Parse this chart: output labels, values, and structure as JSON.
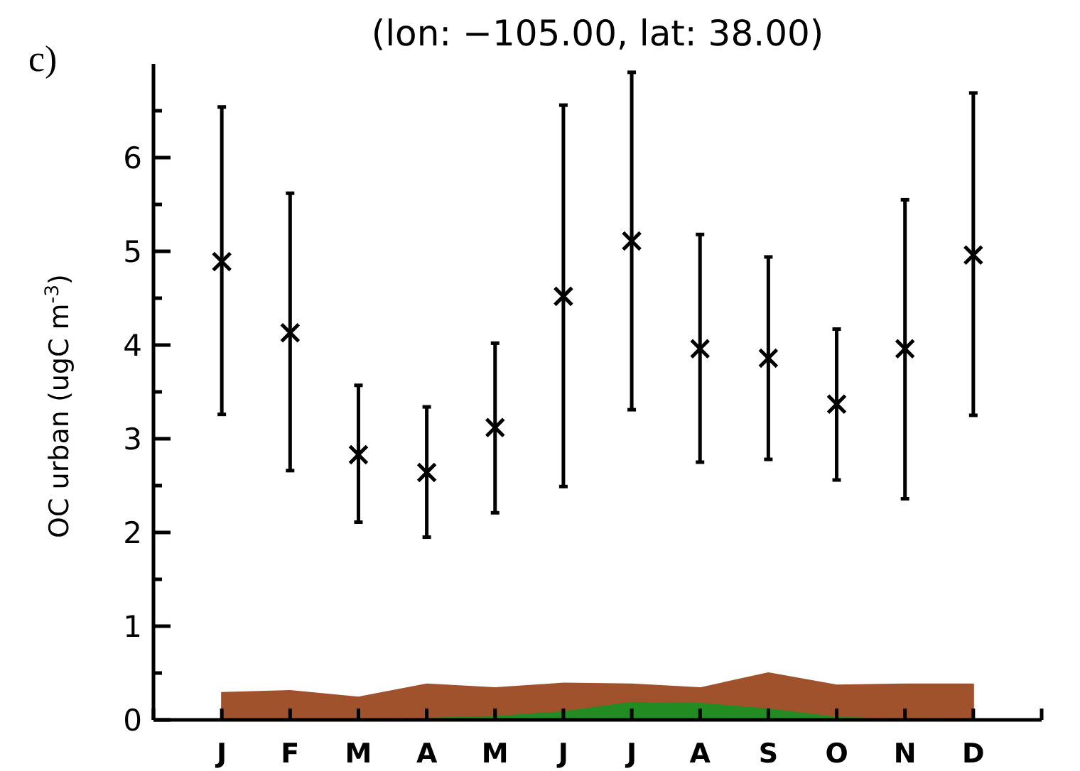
{
  "chart_data": {
    "type": "scatter",
    "title": "(lon: −105.00, lat: 38.00)",
    "ylabel": "OC urban (ugC m$^{-3}$)",
    "annotations": [
      "c)"
    ],
    "categories": [
      "J",
      "F",
      "M",
      "A",
      "M",
      "J",
      "J",
      "A",
      "S",
      "O",
      "N",
      "D"
    ],
    "ylim": [
      0,
      7
    ],
    "yticks": [
      0,
      {
        "value": 0.5,
        "label": null
      },
      1,
      {
        "value": 1.5,
        "label": null
      },
      2,
      {
        "value": 2.5,
        "label": null
      },
      3,
      {
        "value": 3.5,
        "label": null
      },
      4,
      {
        "value": 4.5,
        "label": null
      },
      5,
      {
        "value": 5.5,
        "label": null
      },
      6,
      {
        "value": 6.5,
        "label": null
      }
    ],
    "grid": false,
    "stacked": true,
    "series": [
      {
        "type": "area",
        "color": "#228b22",
        "values": [
          0.01,
          0.01,
          0.01,
          0.03,
          0.05,
          0.1,
          0.2,
          0.19,
          0.13,
          0.04,
          0.02,
          0.01
        ]
      },
      {
        "type": "area",
        "color": "#a0522d",
        "values": [
          0.28,
          0.3,
          0.23,
          0.35,
          0.29,
          0.29,
          0.18,
          0.15,
          0.37,
          0.33,
          0.36,
          0.37
        ]
      },
      {
        "color": "#000000",
        "marker": "cross",
        "values": [
          4.89,
          4.13,
          2.83,
          2.64,
          3.12,
          4.52,
          5.11,
          3.96,
          3.86,
          3.37,
          3.96,
          4.96
        ],
        "errors": [
          [
            3.26,
            6.54
          ],
          [
            2.66,
            5.62
          ],
          [
            2.11,
            3.57
          ],
          [
            1.95,
            3.34
          ],
          [
            2.21,
            4.02
          ],
          [
            2.49,
            6.56
          ],
          [
            3.31,
            6.91
          ],
          [
            2.75,
            5.18
          ],
          [
            2.78,
            4.94
          ],
          [
            2.56,
            4.17
          ],
          [
            2.36,
            5.55
          ],
          [
            3.25,
            6.69
          ]
        ]
      }
    ]
  }
}
